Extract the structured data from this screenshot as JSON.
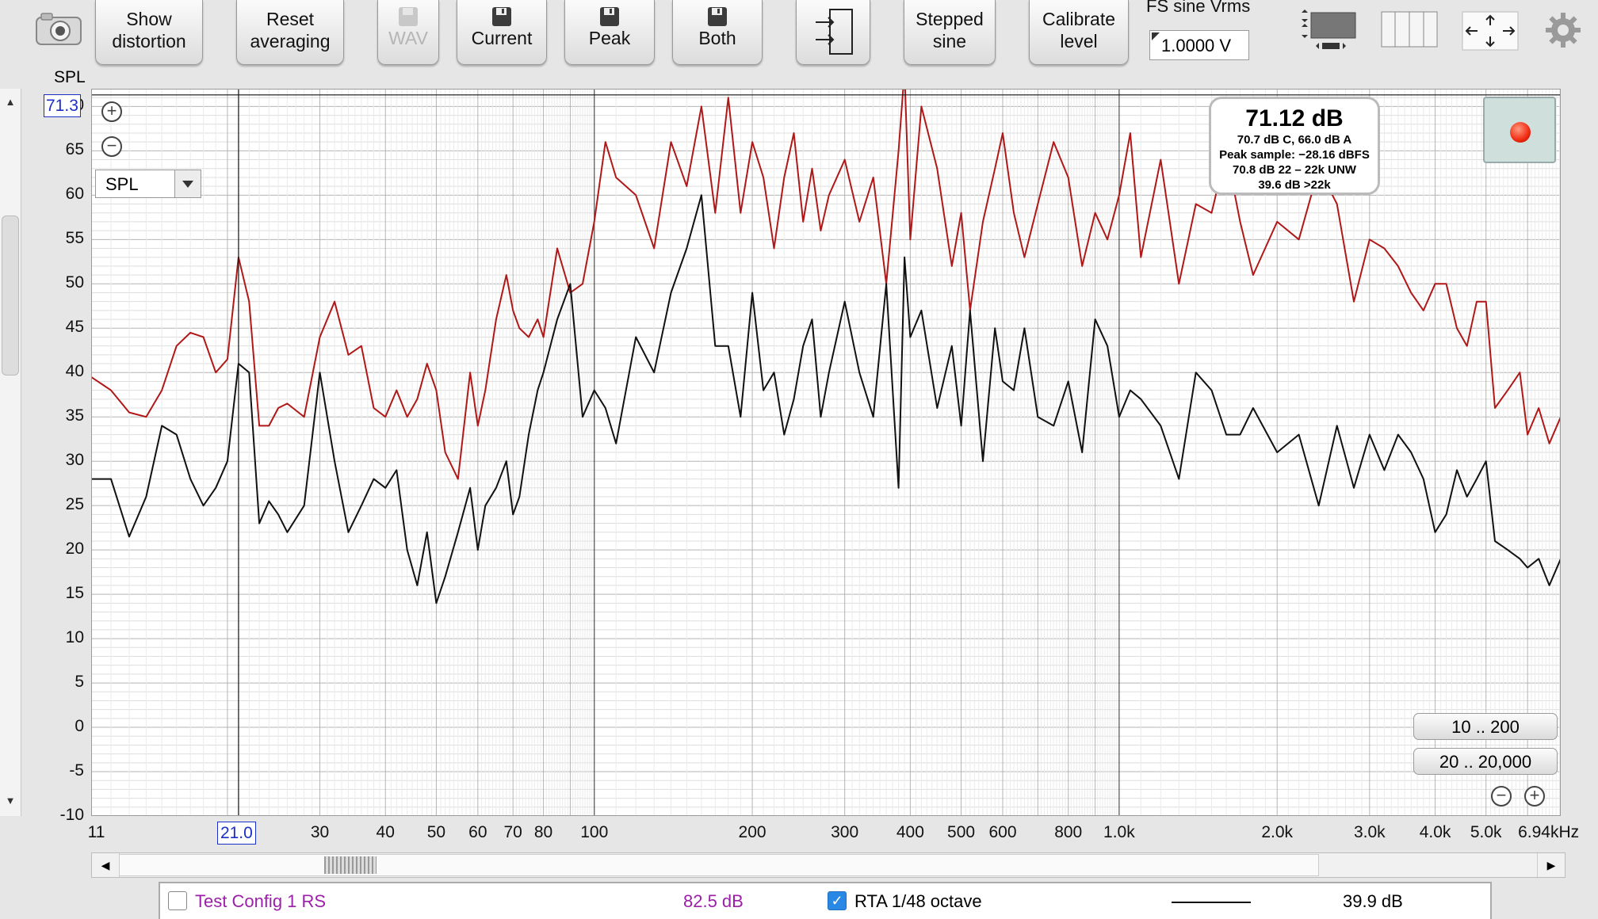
{
  "toolbar": {
    "camera_icon": "camera-icon",
    "show_distortion": "Show\ndistortion",
    "reset_averaging": "Reset\naveraging",
    "wav": "WAV",
    "current": "Current",
    "peak": "Peak",
    "both": "Both",
    "stepped_sine": "Stepped\nsine",
    "calibrate_level": "Calibrate\nlevel",
    "fs_label": "FS sine Vrms",
    "fs_value": "1.0000 V"
  },
  "graph": {
    "y_axis_label": "SPL",
    "y_ticks": [
      "70",
      "65",
      "60",
      "55",
      "50",
      "45",
      "40",
      "35",
      "30",
      "25",
      "20",
      "15",
      "10",
      "5",
      "0",
      "-5",
      "-10"
    ],
    "x_ticks": [
      "11",
      "30",
      "40",
      "50",
      "60",
      "70",
      "80",
      "100",
      "200",
      "300",
      "400",
      "500",
      "600",
      "800",
      "1.0k",
      "2.0k",
      "3.0k",
      "4.0k",
      "5.0k",
      "6.94kHz"
    ],
    "cursor_y_value": "71.3",
    "cursor_x_value": "21.0",
    "spl_select": "SPL",
    "readout": {
      "main": "71.12 dB",
      "line1": "70.7 dB C, 66.0 dB A",
      "line2": "Peak sample: −28.16 dBFS",
      "line3": "70.8 dB 22 – 22k UNW",
      "line4": "39.6 dB >22k"
    },
    "range_btn_1": "10 .. 200",
    "range_btn_2": "20 .. 20,000",
    "colors": {
      "peak_trace": "#b01818",
      "current_trace": "#111111",
      "record": "#ff3b1f"
    }
  },
  "chart_data": {
    "type": "line",
    "xlabel": "",
    "ylabel": "SPL",
    "x_scale": "log",
    "xlim": [
      11,
      6940
    ],
    "ylim": [
      -10,
      72
    ],
    "series": [
      {
        "name": "",
        "x": [
          11,
          12,
          13,
          14,
          15,
          16,
          17,
          18,
          19,
          20,
          21,
          22,
          23,
          24,
          25,
          26,
          28,
          30,
          32,
          34,
          36,
          38,
          40,
          42,
          44,
          46,
          48,
          50,
          52,
          55,
          58,
          60,
          62,
          65,
          68,
          70,
          72,
          75,
          78,
          80,
          85,
          90,
          95,
          100,
          105,
          110,
          120,
          130,
          140,
          150,
          160,
          170,
          180,
          190,
          200,
          210,
          220,
          230,
          240,
          250,
          260,
          270,
          280,
          300,
          320,
          340,
          360,
          380,
          390,
          400,
          420,
          450,
          480,
          500,
          520,
          550,
          580,
          600,
          630,
          660,
          700,
          750,
          800,
          850,
          900,
          950,
          1000,
          1050,
          1100,
          1200,
          1300,
          1400,
          1500,
          1600,
          1700,
          1800,
          2000,
          2200,
          2400,
          2600,
          2800,
          3000,
          3200,
          3400,
          3600,
          3800,
          4000,
          4200,
          4400,
          4600,
          4800,
          5000,
          5200,
          5500,
          5800,
          6000,
          6300,
          6600,
          6940
        ],
        "y": [
          39.5,
          38,
          35.5,
          35,
          38,
          43,
          44.5,
          44,
          40,
          41.5,
          53,
          48,
          34,
          34,
          36,
          36.5,
          35,
          44,
          48,
          42,
          43,
          36,
          35,
          38,
          35,
          37,
          41,
          38,
          31,
          28,
          40,
          34,
          38,
          46,
          51,
          47,
          45,
          44,
          46,
          44,
          54,
          49,
          50,
          57,
          66,
          62,
          60,
          54,
          66,
          61,
          70,
          58,
          71,
          58,
          66,
          62,
          54,
          62,
          67,
          57,
          63,
          56,
          60,
          64,
          57,
          62,
          50,
          65,
          74,
          55,
          70,
          63,
          52,
          58,
          47,
          57,
          63,
          67,
          58,
          53,
          59,
          66,
          62,
          52,
          58,
          55,
          60,
          67,
          53,
          64,
          50,
          59,
          58,
          65,
          57,
          51,
          57,
          55,
          63,
          59,
          48,
          55,
          54,
          52,
          49,
          47,
          50,
          50,
          45,
          43,
          48,
          48,
          36,
          38,
          40,
          33,
          36,
          32,
          35
        ]
      },
      {
        "name": "",
        "x": [
          11,
          12,
          13,
          14,
          15,
          16,
          17,
          18,
          19,
          20,
          21,
          22,
          23,
          24,
          25,
          26,
          28,
          30,
          32,
          34,
          36,
          38,
          40,
          42,
          44,
          46,
          48,
          50,
          52,
          55,
          58,
          60,
          62,
          65,
          68,
          70,
          72,
          75,
          78,
          80,
          85,
          90,
          95,
          100,
          105,
          110,
          120,
          130,
          140,
          150,
          160,
          170,
          180,
          190,
          200,
          210,
          220,
          230,
          240,
          250,
          260,
          270,
          280,
          300,
          320,
          340,
          360,
          380,
          390,
          400,
          420,
          450,
          480,
          500,
          520,
          550,
          580,
          600,
          630,
          660,
          700,
          750,
          800,
          850,
          900,
          950,
          1000,
          1050,
          1100,
          1200,
          1300,
          1400,
          1500,
          1600,
          1700,
          1800,
          2000,
          2200,
          2400,
          2600,
          2800,
          3000,
          3200,
          3400,
          3600,
          3800,
          4000,
          4200,
          4400,
          4600,
          4800,
          5000,
          5200,
          5500,
          5800,
          6000,
          6300,
          6600,
          6940
        ],
        "y": [
          28,
          28,
          21.5,
          26,
          34,
          33,
          28,
          25,
          27,
          30,
          41,
          40,
          23,
          25.5,
          24,
          22,
          25,
          40,
          30,
          22,
          25,
          28,
          27,
          29,
          20,
          16,
          22,
          14,
          17,
          22,
          27,
          20,
          25,
          27,
          30,
          24,
          26,
          33,
          38,
          40,
          46,
          50,
          35,
          38,
          36,
          32,
          44,
          40,
          49,
          54,
          60,
          43,
          43,
          35,
          49,
          38,
          40,
          33,
          37,
          43,
          46,
          35,
          40,
          48,
          40,
          35,
          50,
          27,
          53,
          44,
          47,
          36,
          43,
          34,
          47,
          30,
          45,
          39,
          38,
          45,
          35,
          34,
          39,
          31,
          46,
          43,
          35,
          38,
          37,
          34,
          28,
          40,
          38,
          33,
          33,
          36,
          31,
          33,
          25,
          34,
          27,
          33,
          29,
          33,
          31,
          28,
          22,
          24,
          29,
          26,
          28,
          30,
          21,
          20,
          19,
          18,
          19,
          16,
          19
        ]
      }
    ],
    "grid": true
  },
  "bottom_panel": {
    "config_name": "Test Config 1 RS",
    "config_value": "82.5 dB",
    "rta_label": "RTA 1/48 octave",
    "rta_value": "39.9 dB"
  }
}
